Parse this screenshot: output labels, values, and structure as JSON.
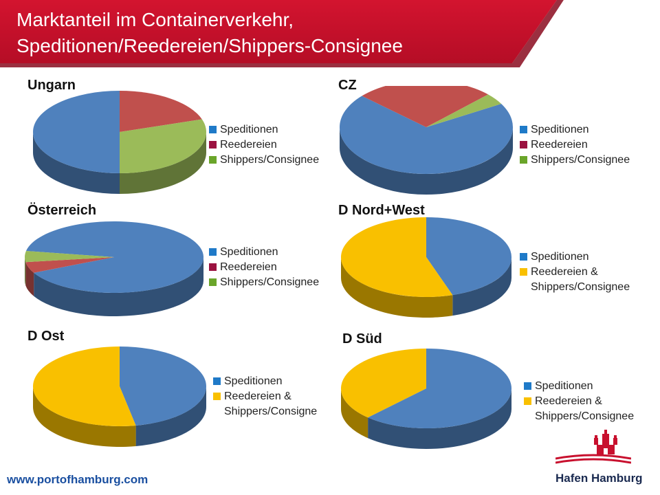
{
  "header": {
    "title_line1": "Marktanteil im Containerverkehr,",
    "title_line2": "Speditionen/Reedereien/Shippers-Consignee"
  },
  "colors": {
    "banner": "#c8102e",
    "speditionen": "#4f81bd",
    "reedereien": "#c0504d",
    "shippers": "#9bbb59",
    "reedereien_shippers": "#f9c000",
    "legend_speditionen": "#1f7ac8",
    "legend_reedereien": "#9b1240",
    "legend_shippers": "#6aa52a",
    "legend_combined": "#f9c000"
  },
  "chart_data": [
    {
      "type": "pie",
      "title": "Ungarn",
      "labels": [
        "Speditionen",
        "Reedereien",
        "Shippers/Consignee"
      ],
      "values": [
        50,
        20,
        30
      ]
    },
    {
      "type": "pie",
      "title": "CZ",
      "labels": [
        "Speditionen",
        "Reedereien",
        "Shippers/Consignee"
      ],
      "values": [
        70,
        26,
        4
      ]
    },
    {
      "type": "pie",
      "title": "Österreich",
      "labels": [
        "Speditionen",
        "Reedereien",
        "Shippers/Consignee"
      ],
      "values": [
        90,
        5,
        5
      ]
    },
    {
      "type": "pie",
      "title": "D Nord+West",
      "labels": [
        "Speditionen",
        "Reedereien & Shippers/Consignee"
      ],
      "values": [
        45,
        55
      ]
    },
    {
      "type": "pie",
      "title": "D Ost",
      "labels": [
        "Speditionen",
        "Reedereien & Shippers/Consigne"
      ],
      "values": [
        47,
        53
      ]
    },
    {
      "type": "pie",
      "title": "D Süd",
      "labels": [
        "Speditionen",
        "Reedereien & Shippers/Consignee"
      ],
      "values": [
        62,
        38
      ]
    }
  ],
  "footer": {
    "url": "www.portofhamburg.com",
    "brand": "Hafen Hamburg"
  }
}
